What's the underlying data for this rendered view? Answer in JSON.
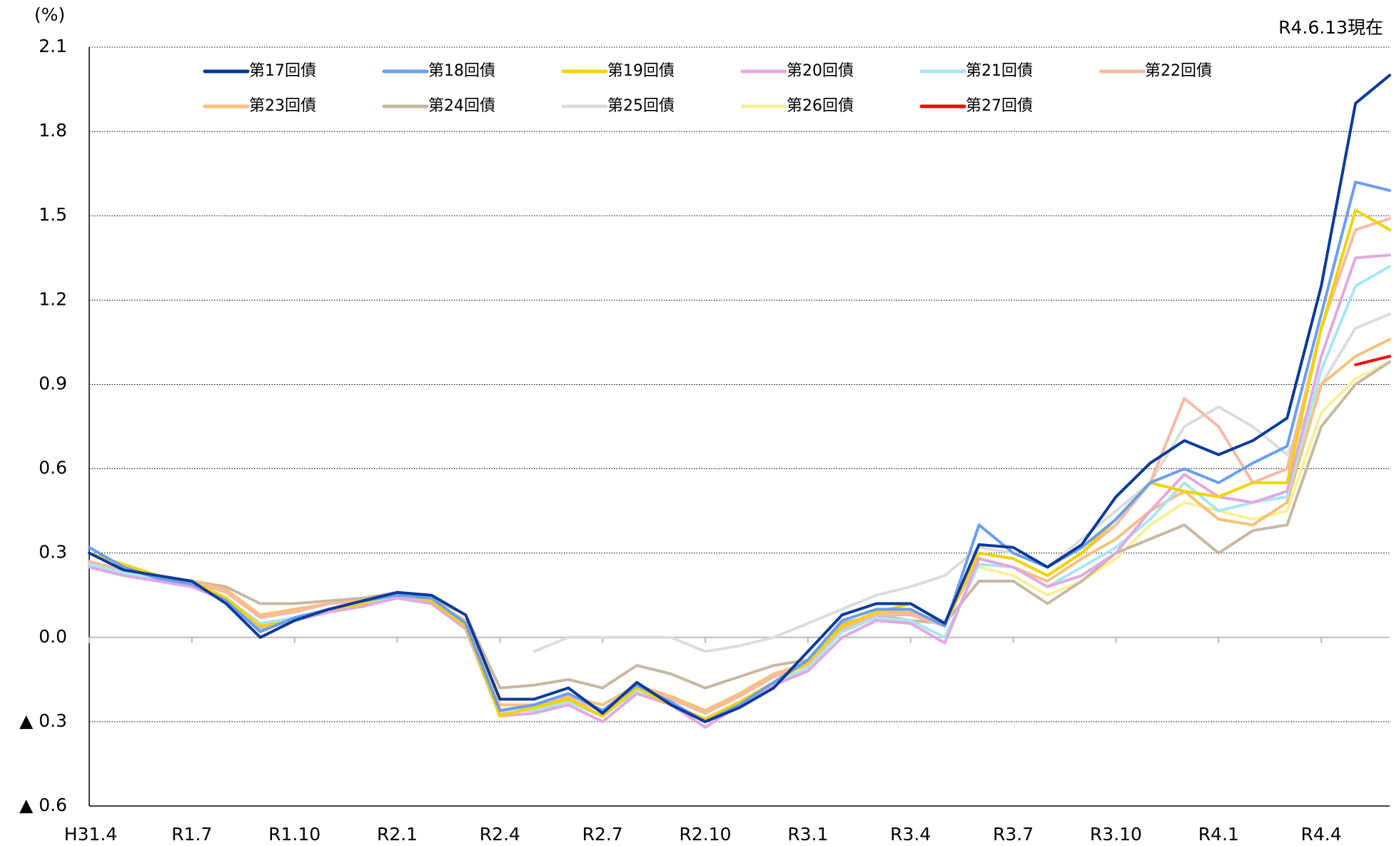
{
  "chart_data": {
    "type": "line",
    "unit_label": "(%)",
    "note": "R4.6.13現在",
    "categories": [
      "H31.4",
      null,
      null,
      "R1.7",
      null,
      null,
      "R1.10",
      null,
      null,
      "R2.1",
      null,
      null,
      "R2.4",
      null,
      null,
      "R2.7",
      null,
      null,
      "R2.10",
      null,
      null,
      "R3.1",
      null,
      null,
      "R3.4",
      null,
      null,
      "R3.7",
      null,
      null,
      "R3.10",
      null,
      null,
      "R4.1",
      null,
      null,
      "R4.4",
      null,
      null
    ],
    "ylim": [
      -0.6,
      2.1
    ],
    "yticks": [
      {
        "value": -0.6,
        "label": "▲ 0.6"
      },
      {
        "value": -0.3,
        "label": "▲ 0.3"
      },
      {
        "value": 0,
        "label": "0.0"
      },
      0.3,
      0.6,
      0.9,
      1.2,
      1.5,
      1.8,
      2.1
    ],
    "grid": true,
    "series": [
      {
        "name": "第17回債",
        "color": "#0a3a9a",
        "values": [
          0.3,
          0.24,
          0.22,
          0.2,
          0.12,
          0.0,
          0.06,
          0.1,
          0.13,
          0.16,
          0.15,
          0.08,
          -0.22,
          -0.22,
          -0.18,
          -0.27,
          -0.16,
          -0.24,
          -0.3,
          -0.25,
          -0.18,
          -0.05,
          0.08,
          0.12,
          0.12,
          0.05,
          0.33,
          0.32,
          0.25,
          0.33,
          0.5,
          0.62,
          0.7,
          0.65,
          0.7,
          0.78,
          1.25,
          1.9,
          2.0
        ]
      },
      {
        "name": "第18回債",
        "color": "#6a9ef0",
        "values": [
          0.32,
          0.25,
          0.21,
          0.19,
          0.13,
          0.02,
          0.07,
          0.1,
          0.13,
          0.15,
          0.14,
          0.05,
          -0.26,
          -0.24,
          -0.2,
          -0.26,
          -0.17,
          -0.23,
          -0.3,
          -0.24,
          -0.16,
          -0.08,
          0.06,
          0.1,
          0.1,
          0.04,
          0.4,
          0.3,
          0.25,
          0.32,
          0.42,
          0.55,
          0.6,
          0.55,
          0.62,
          0.68,
          1.15,
          1.62,
          1.59
        ]
      },
      {
        "name": "第19回債",
        "color": "#f2d200",
        "values": [
          0.3,
          0.26,
          0.22,
          0.2,
          0.14,
          0.04,
          0.06,
          0.1,
          0.12,
          0.16,
          0.13,
          0.04,
          -0.28,
          -0.25,
          -0.22,
          -0.28,
          -0.18,
          -0.24,
          -0.29,
          -0.23,
          -0.16,
          -0.09,
          0.04,
          0.09,
          0.12,
          0.05,
          0.3,
          0.28,
          0.22,
          0.3,
          0.42,
          0.55,
          0.52,
          0.5,
          0.55,
          0.55,
          1.1,
          1.52,
          1.45
        ]
      },
      {
        "name": "第20回債",
        "color": "#e2a8e2",
        "values": [
          0.25,
          0.22,
          0.2,
          0.18,
          0.13,
          0.03,
          0.06,
          0.09,
          0.11,
          0.14,
          0.12,
          0.03,
          -0.28,
          -0.27,
          -0.24,
          -0.3,
          -0.2,
          -0.24,
          -0.32,
          -0.24,
          -0.17,
          -0.12,
          0.0,
          0.06,
          0.05,
          -0.02,
          0.28,
          0.25,
          0.18,
          0.22,
          0.3,
          0.45,
          0.58,
          0.5,
          0.48,
          0.52,
          1.0,
          1.35,
          1.36
        ]
      },
      {
        "name": "第21回債",
        "color": "#a8e6f0",
        "values": [
          0.26,
          0.23,
          0.21,
          0.19,
          0.14,
          0.05,
          0.07,
          0.1,
          0.12,
          0.14,
          0.12,
          0.04,
          -0.26,
          -0.26,
          -0.23,
          -0.28,
          -0.19,
          -0.24,
          -0.3,
          -0.23,
          -0.16,
          -0.11,
          0.02,
          0.07,
          0.06,
          0.0,
          0.26,
          0.25,
          0.18,
          0.25,
          0.32,
          0.42,
          0.55,
          0.45,
          0.48,
          0.5,
          0.95,
          1.25,
          1.32
        ]
      },
      {
        "name": "第22回債",
        "color": "#f8baa2",
        "values": [
          0.27,
          0.24,
          0.22,
          0.2,
          0.16,
          0.07,
          0.09,
          0.12,
          0.13,
          0.15,
          0.13,
          0.05,
          -0.27,
          -0.25,
          -0.22,
          -0.26,
          -0.18,
          -0.22,
          -0.27,
          -0.21,
          -0.14,
          -0.1,
          0.03,
          0.08,
          0.08,
          0.04,
          0.3,
          0.28,
          0.22,
          0.3,
          0.4,
          0.55,
          0.85,
          0.75,
          0.55,
          0.6,
          1.1,
          1.45,
          1.49
        ]
      },
      {
        "name": "第23回債",
        "color": "#f8c07c",
        "values": [
          0.26,
          0.24,
          0.22,
          0.2,
          0.17,
          0.08,
          0.1,
          0.12,
          0.13,
          0.15,
          0.13,
          0.06,
          -0.24,
          -0.24,
          -0.21,
          -0.24,
          -0.17,
          -0.21,
          -0.26,
          -0.2,
          -0.13,
          -0.09,
          0.04,
          0.09,
          0.09,
          0.05,
          0.28,
          0.25,
          0.2,
          0.28,
          0.35,
          0.45,
          0.52,
          0.42,
          0.4,
          0.48,
          0.9,
          1.0,
          1.06
        ]
      },
      {
        "name": "第24回債",
        "color": "#c8b8a2",
        "values": [
          0.25,
          0.24,
          0.22,
          0.2,
          0.18,
          0.12,
          0.12,
          0.13,
          0.14,
          0.16,
          0.14,
          0.08,
          -0.18,
          -0.17,
          -0.15,
          -0.18,
          -0.1,
          -0.13,
          -0.18,
          -0.14,
          -0.1,
          -0.08,
          0.05,
          0.08,
          0.06,
          0.05,
          0.2,
          0.2,
          0.12,
          0.2,
          0.3,
          0.35,
          0.4,
          0.3,
          0.38,
          0.4,
          0.75,
          0.9,
          0.98
        ]
      },
      {
        "name": "第25回債",
        "color": "#dcdcdc",
        "values": [
          null,
          null,
          null,
          null,
          null,
          null,
          null,
          null,
          null,
          null,
          null,
          null,
          null,
          -0.05,
          0.0,
          0.0,
          0.0,
          0.0,
          -0.05,
          -0.03,
          0.0,
          0.05,
          0.1,
          0.15,
          0.18,
          0.22,
          0.32,
          0.3,
          0.25,
          0.35,
          0.45,
          0.55,
          0.75,
          0.82,
          0.75,
          0.65,
          0.9,
          1.1,
          1.15
        ]
      },
      {
        "name": "第26回債",
        "color": "#f8f098",
        "values": [
          null,
          null,
          null,
          null,
          null,
          null,
          null,
          null,
          null,
          null,
          null,
          null,
          null,
          null,
          null,
          null,
          null,
          null,
          null,
          null,
          null,
          null,
          null,
          null,
          null,
          null,
          0.25,
          0.22,
          0.15,
          0.2,
          0.28,
          0.4,
          0.48,
          0.45,
          0.42,
          0.45,
          0.8,
          0.92,
          0.98
        ]
      },
      {
        "name": "第27回債",
        "color": "#ff0000",
        "values": [
          null,
          null,
          null,
          null,
          null,
          null,
          null,
          null,
          null,
          null,
          null,
          null,
          null,
          null,
          null,
          null,
          null,
          null,
          null,
          null,
          null,
          null,
          null,
          null,
          null,
          null,
          null,
          null,
          null,
          null,
          null,
          null,
          null,
          null,
          null,
          null,
          null,
          0.97,
          1.0
        ]
      }
    ]
  }
}
